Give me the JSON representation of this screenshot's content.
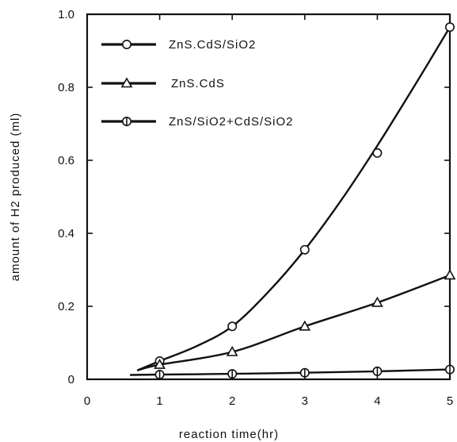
{
  "chart_data": {
    "type": "line",
    "title": "",
    "xlabel": "reaction time(hr)",
    "ylabel": "amount of H2 produced (ml)",
    "xlim": [
      0,
      5
    ],
    "ylim": [
      0,
      1.0
    ],
    "xticks": [
      0,
      1,
      2,
      3,
      4,
      5
    ],
    "yticks": [
      0,
      0.2,
      0.4,
      0.6,
      0.8,
      1.0
    ],
    "xtick_labels": [
      "0",
      "1",
      "2",
      "3",
      "4",
      "5"
    ],
    "ytick_labels": [
      "0",
      "0.2",
      "0.4",
      "0.6",
      "0.8",
      "1.0"
    ],
    "grid": false,
    "legend_position": "top-left",
    "series": [
      {
        "name": "ZnS.CdS/SiO2",
        "marker": "circle",
        "x": [
          1,
          2,
          3,
          4,
          5
        ],
        "y": [
          0.05,
          0.145,
          0.355,
          0.62,
          0.965
        ],
        "curve_x": [
          0.7,
          1,
          1.5,
          2,
          2.5,
          3,
          3.5,
          4,
          4.5,
          5
        ],
        "curve_y": [
          0.025,
          0.05,
          0.09,
          0.145,
          0.24,
          0.355,
          0.49,
          0.64,
          0.8,
          0.965
        ]
      },
      {
        "name": "ZnS.CdS",
        "marker": "triangle",
        "x": [
          1,
          2,
          3,
          4,
          5
        ],
        "y": [
          0.04,
          0.075,
          0.145,
          0.21,
          0.285
        ],
        "curve_x": [
          0.7,
          1,
          2,
          3,
          4,
          5
        ],
        "curve_y": [
          0.025,
          0.04,
          0.075,
          0.145,
          0.21,
          0.285
        ]
      },
      {
        "name": "ZnS/SiO2+CdS/SiO2",
        "marker": "circle-bar",
        "x": [
          1,
          2,
          3,
          4,
          5
        ],
        "y": [
          0.013,
          0.015,
          0.018,
          0.022,
          0.027
        ],
        "curve_x": [
          0.6,
          1,
          2,
          3,
          4,
          5
        ],
        "curve_y": [
          0.012,
          0.013,
          0.015,
          0.018,
          0.022,
          0.027
        ]
      }
    ]
  }
}
